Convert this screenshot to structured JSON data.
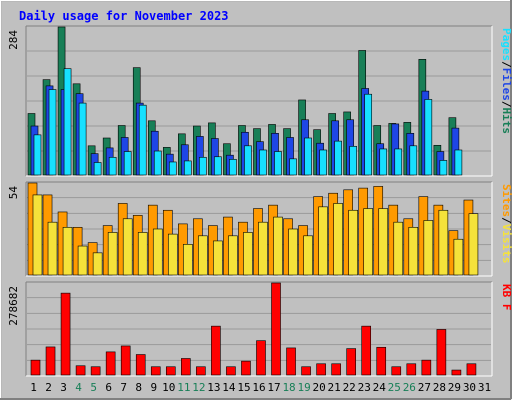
{
  "chart_data": [
    {
      "type": "bar",
      "title": "Daily usage for November 2023",
      "categories": [
        "1",
        "2",
        "3",
        "4",
        "5",
        "6",
        "7",
        "8",
        "9",
        "10",
        "11",
        "12",
        "13",
        "14",
        "15",
        "16",
        "17",
        "18",
        "19",
        "20",
        "21",
        "22",
        "23",
        "24",
        "25",
        "26",
        "27",
        "28",
        "29",
        "30",
        "31"
      ],
      "weekend_days": [
        "4",
        "5",
        "11",
        "12",
        "18",
        "19",
        "25",
        "26"
      ],
      "ylabel_parts": [
        "Pages",
        "/",
        "Files",
        "/",
        "Hits"
      ],
      "ylim": [
        0,
        284
      ],
      "max_tick": "284",
      "grid": true,
      "series": [
        {
          "name": "Hits",
          "color": "#187f57",
          "values": [
            118,
            183,
            284,
            175,
            56,
            71,
            95,
            206,
            104,
            53,
            79,
            94,
            100,
            60,
            95,
            89,
            97,
            89,
            144,
            87,
            118,
            121,
            239,
            95,
            99,
            101,
            222,
            57,
            110,
            null,
            null
          ]
        },
        {
          "name": "Files",
          "color": "#1e46e6",
          "values": [
            94,
            171,
            164,
            156,
            41,
            52,
            72,
            138,
            84,
            40,
            58,
            74,
            70,
            38,
            82,
            64,
            80,
            72,
            106,
            61,
            104,
            106,
            166,
            60,
            98,
            80,
            161,
            45,
            90,
            null,
            null
          ]
        },
        {
          "name": "Pages",
          "color": "#17e0ff",
          "values": [
            77,
            164,
            204,
            138,
            24,
            34,
            45,
            134,
            46,
            25,
            27,
            34,
            35,
            30,
            56,
            48,
            45,
            31,
            71,
            48,
            65,
            55,
            155,
            50,
            50,
            56,
            145,
            28,
            48,
            null,
            null
          ]
        }
      ]
    },
    {
      "type": "bar",
      "ylabel_parts": [
        "Sites",
        "/",
        "Visits"
      ],
      "ylim": [
        0,
        54
      ],
      "max_tick": "54",
      "grid": true,
      "series": [
        {
          "name": "Visits",
          "color": "#ff9a00",
          "values": [
            54,
            47,
            37,
            28,
            19,
            29,
            42,
            35,
            41,
            38,
            30,
            33,
            29,
            34,
            31,
            39,
            41,
            33,
            29,
            46,
            48,
            50,
            51,
            52,
            41,
            33,
            46,
            41,
            26,
            44,
            null
          ]
        },
        {
          "name": "Sites",
          "color": "#f5e23a",
          "values": [
            47,
            31,
            28,
            17,
            13,
            25,
            33,
            25,
            27,
            24,
            18,
            23,
            20,
            23,
            25,
            31,
            34,
            27,
            23,
            40,
            42,
            38,
            39,
            39,
            31,
            28,
            32,
            38,
            21,
            36,
            null
          ]
        }
      ]
    },
    {
      "type": "bar",
      "ylabel_parts": [
        "KB",
        "F"
      ],
      "ylim": [
        0,
        278682
      ],
      "max_tick": "278682",
      "grid": true,
      "series": [
        {
          "name": "KB F",
          "color": "#ff0000",
          "values": [
            45000,
            85000,
            248000,
            28000,
            25000,
            70000,
            88000,
            62000,
            25000,
            25000,
            50000,
            25000,
            148000,
            25000,
            42000,
            104000,
            278682,
            82000,
            25000,
            34000,
            34000,
            80000,
            148000,
            84000,
            25000,
            34000,
            45000,
            138000,
            15000,
            34000,
            null
          ]
        }
      ]
    }
  ]
}
